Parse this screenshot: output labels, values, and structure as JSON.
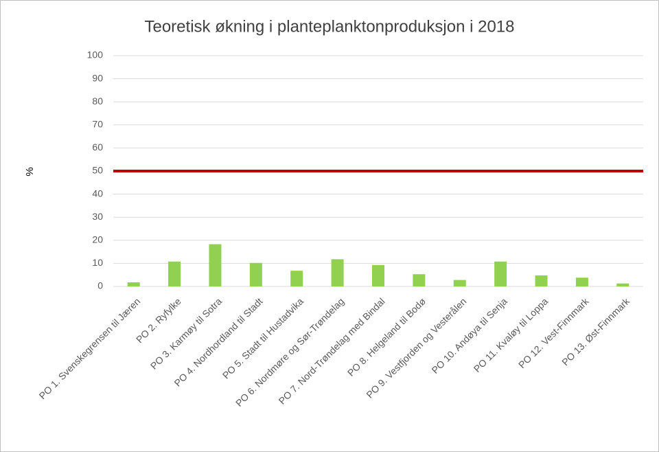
{
  "chart_data": {
    "type": "bar",
    "title": "Teoretisk økning i planteplanktonproduksjon i 2018",
    "y_label": "%",
    "categories": [
      "PO 1. Svenskegrensen til Jæren",
      "PO 2. Ryfylke",
      "PO 3. Karmøy til Sotra",
      "PO 4. Nordhordland til Stadt",
      "PO 5. Stadt til Hustadvika",
      "PO 6. Nordmøre og Sør-Trøndelag",
      "PO 7. Nord-Trøndelag med Bindal",
      "PO 8. Helgeland til Bodø",
      "PO 9. Vestfjorden og Vesterålen",
      "PO 10. Andøya til Senja",
      "PO 11. Kvaløy til Loppa",
      "PO 12. Vest-Finnmark",
      "PO 13. Øst-Finnmark"
    ],
    "values": [
      1.8,
      10.8,
      18.3,
      10.2,
      6.8,
      11.8,
      9.3,
      5.3,
      2.8,
      10.8,
      4.8,
      3.8,
      1.3
    ],
    "color": "#92d050",
    "reference_line": {
      "value": 50,
      "color": "#c00000"
    },
    "ylim": [
      0,
      100
    ],
    "yticks": [
      0,
      10,
      20,
      30,
      40,
      50,
      60,
      70,
      80,
      90,
      100
    ],
    "grid": true
  }
}
